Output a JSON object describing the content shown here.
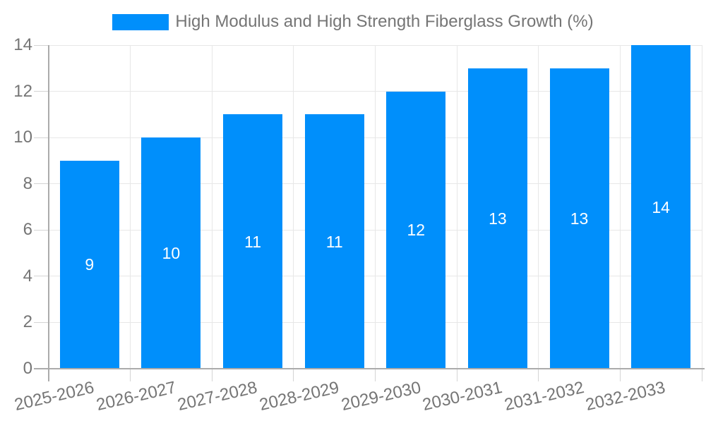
{
  "chart_data": {
    "type": "bar",
    "title": "High Modulus and High Strength Fiberglass Growth (%)",
    "categories": [
      "2025-2026",
      "2026-2027",
      "2027-2028",
      "2028-2029",
      "2029-2030",
      "2030-2031",
      "2031-2032",
      "2032-2033"
    ],
    "series": [
      {
        "name": "High Modulus and High Strength Fiberglass Growth (%)",
        "values": [
          9,
          10,
          11,
          11,
          12,
          13,
          13,
          14
        ]
      }
    ],
    "bar_value_labels": [
      "9",
      "10",
      "11",
      "11",
      "12",
      "13",
      "13",
      "14"
    ],
    "xlabel": "",
    "ylabel": "",
    "ylim": [
      0,
      14
    ],
    "yticks": [
      0,
      2,
      4,
      6,
      8,
      10,
      12,
      14
    ],
    "grid": true,
    "legend_position": "top",
    "colors": {
      "bar": "#008FFB",
      "bar_label": "#FFFFFF",
      "grid_line": "#E7E7E7",
      "tick_line": "#D4D4D4",
      "axis_line": "#ABABAB",
      "label_text": "#757575",
      "background": "#FFFFFF"
    }
  }
}
